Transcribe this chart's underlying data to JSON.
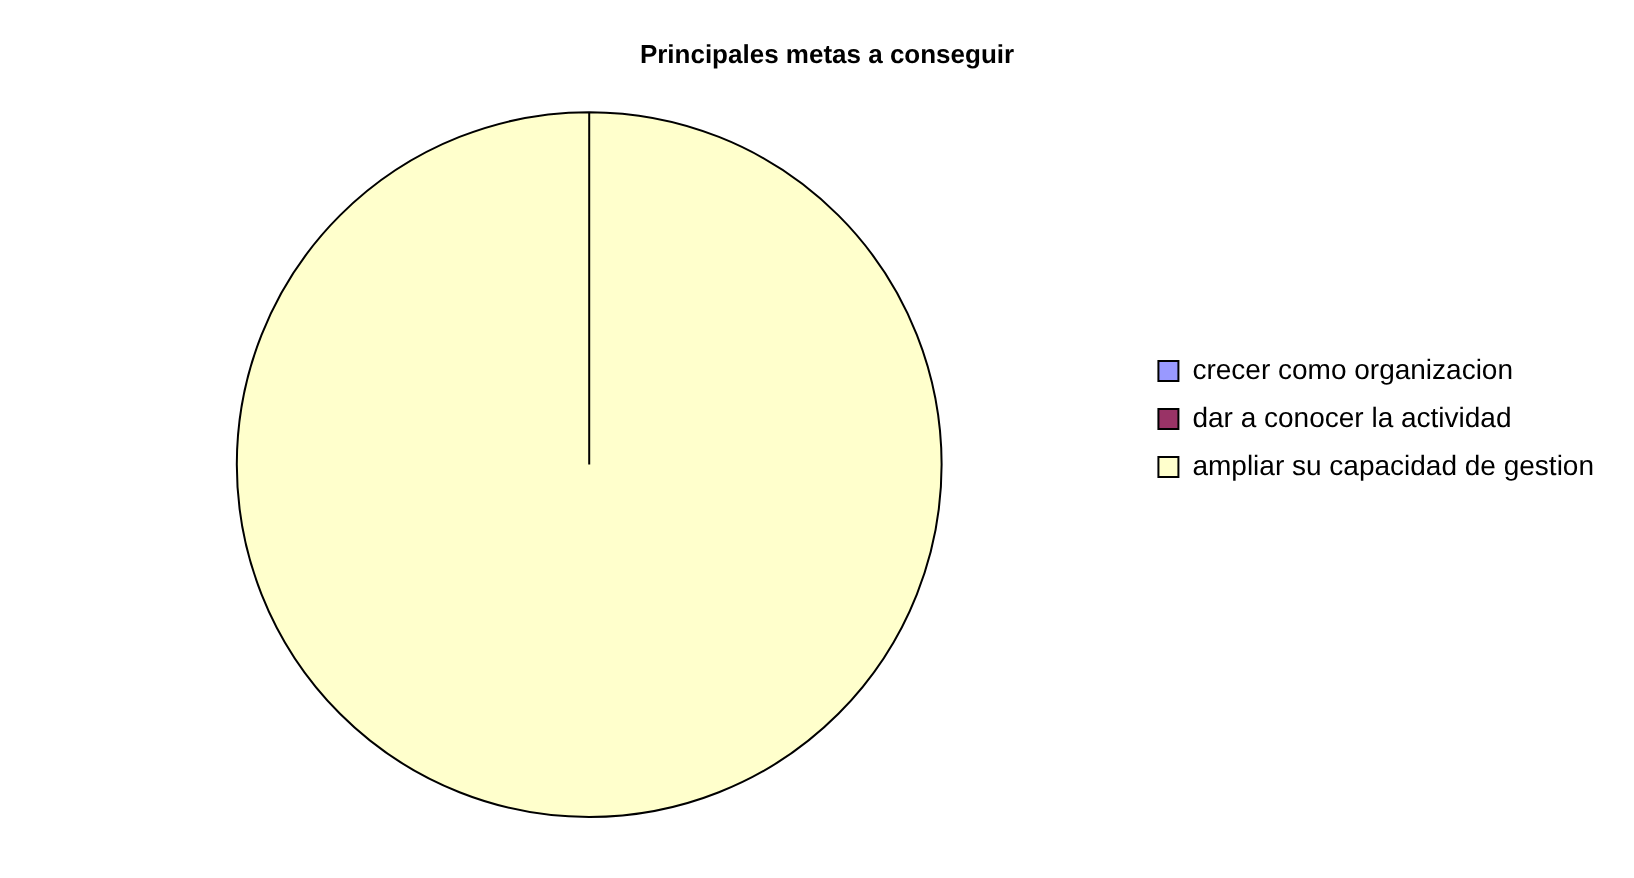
{
  "chart_data": {
    "type": "pie",
    "title": "Principales metas a conseguir",
    "categories": [
      "crecer como organizacion",
      "dar a conocer la actividad",
      "ampliar su capacidad de gestion"
    ],
    "values": [
      0,
      0,
      100
    ],
    "colors": [
      "#9999ff",
      "#993366",
      "#ffffcc"
    ],
    "legend": "right"
  }
}
